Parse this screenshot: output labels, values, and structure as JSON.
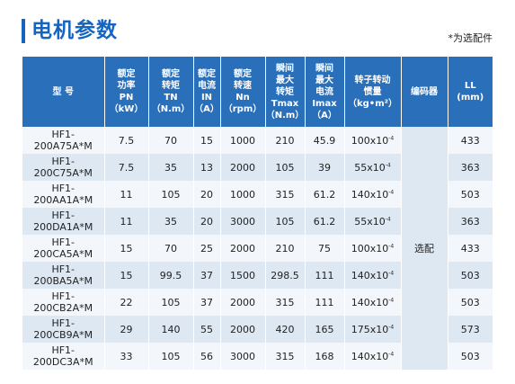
{
  "header": {
    "title": "电机参数",
    "note": "*为选配件"
  },
  "table": {
    "columns": [
      [
        "型  号"
      ],
      [
        "额定",
        "功率",
        "PN",
        "（kW）"
      ],
      [
        "额定",
        "转矩",
        "TN",
        "（N.m）"
      ],
      [
        "额定",
        "电流",
        "IN",
        "（A）"
      ],
      [
        "额定",
        "转速",
        "Nn",
        "（rpm）"
      ],
      [
        "瞬间",
        "最大",
        "转矩",
        "Tmax",
        "（N.m）"
      ],
      [
        "瞬间",
        "最大",
        "电流",
        "Imax",
        "（A）"
      ],
      [
        "转子转动",
        "惯量",
        "（kg•m²）"
      ],
      [
        "编码器"
      ],
      [
        "LL",
        "(mm)"
      ]
    ],
    "encoder": "选配",
    "rows": [
      {
        "model": "HF1-200A75A*M",
        "pn": "7.5",
        "tn": "70",
        "in": "15",
        "nn": "1000",
        "tmax": "210",
        "imax": "45.9",
        "inertia": "100x10",
        "exp": "-4",
        "ll": "433"
      },
      {
        "model": "HF1-200C75A*M",
        "pn": "7.5",
        "tn": "35",
        "in": "13",
        "nn": "2000",
        "tmax": "105",
        "imax": "39",
        "inertia": "55x10",
        "exp": "-4",
        "ll": "363"
      },
      {
        "model": "HF1-200AA1A*M",
        "pn": "11",
        "tn": "105",
        "in": "20",
        "nn": "1000",
        "tmax": "315",
        "imax": "61.2",
        "inertia": "140x10",
        "exp": "-4",
        "ll": "503"
      },
      {
        "model": "HF1-200DA1A*M",
        "pn": "11",
        "tn": "35",
        "in": "20",
        "nn": "3000",
        "tmax": "105",
        "imax": "61.2",
        "inertia": "55x10",
        "exp": "-4",
        "ll": "363"
      },
      {
        "model": "HF1-200CA5A*M",
        "pn": "15",
        "tn": "70",
        "in": "25",
        "nn": "2000",
        "tmax": "210",
        "imax": "75",
        "inertia": "100x10",
        "exp": "-4",
        "ll": "433"
      },
      {
        "model": "HF1-200BA5A*M",
        "pn": "15",
        "tn": "99.5",
        "in": "37",
        "nn": "1500",
        "tmax": "298.5",
        "imax": "111",
        "inertia": "140x10",
        "exp": "-4",
        "ll": "503"
      },
      {
        "model": "HF1-200CB2A*M",
        "pn": "22",
        "tn": "105",
        "in": "37",
        "nn": "2000",
        "tmax": "315",
        "imax": "111",
        "inertia": "140x10",
        "exp": "-4",
        "ll": "503"
      },
      {
        "model": "HF1-200CB9A*M",
        "pn": "29",
        "tn": "140",
        "in": "55",
        "nn": "2000",
        "tmax": "420",
        "imax": "165",
        "inertia": "175x10",
        "exp": "-4",
        "ll": "573"
      },
      {
        "model": "HF1-200DC3A*M",
        "pn": "33",
        "tn": "105",
        "in": "56",
        "nn": "3000",
        "tmax": "315",
        "imax": "168",
        "inertia": "140x10",
        "exp": "-4",
        "ll": "503"
      }
    ]
  },
  "colors": {
    "title": "#1565c0",
    "header_bg": "#2a6fba",
    "row_light": "#f3f7fb",
    "row_dark": "#dde8f3"
  }
}
